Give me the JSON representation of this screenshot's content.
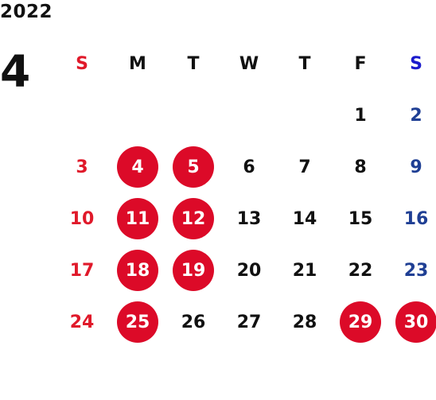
{
  "year": "2022",
  "month": "4",
  "weekdays": [
    "S",
    "M",
    "T",
    "W",
    "T",
    "F",
    "S"
  ],
  "weeks": [
    [
      "",
      "",
      "",
      "",
      "",
      "1",
      "2"
    ],
    [
      "3",
      "4",
      "5",
      "6",
      "7",
      "8",
      "9"
    ],
    [
      "10",
      "11",
      "12",
      "13",
      "14",
      "15",
      "16"
    ],
    [
      "17",
      "18",
      "19",
      "20",
      "21",
      "22",
      "23"
    ],
    [
      "24",
      "25",
      "26",
      "27",
      "28",
      "29",
      "30"
    ]
  ],
  "highlighted_days": [
    "4",
    "5",
    "11",
    "12",
    "18",
    "19",
    "25",
    "29",
    "30"
  ],
  "colors": {
    "sunday": "#e0192a",
    "saturday": "#1f3f94",
    "saturday_header": "#1a1acc",
    "highlight": "#dc0a28",
    "text": "#111111"
  }
}
